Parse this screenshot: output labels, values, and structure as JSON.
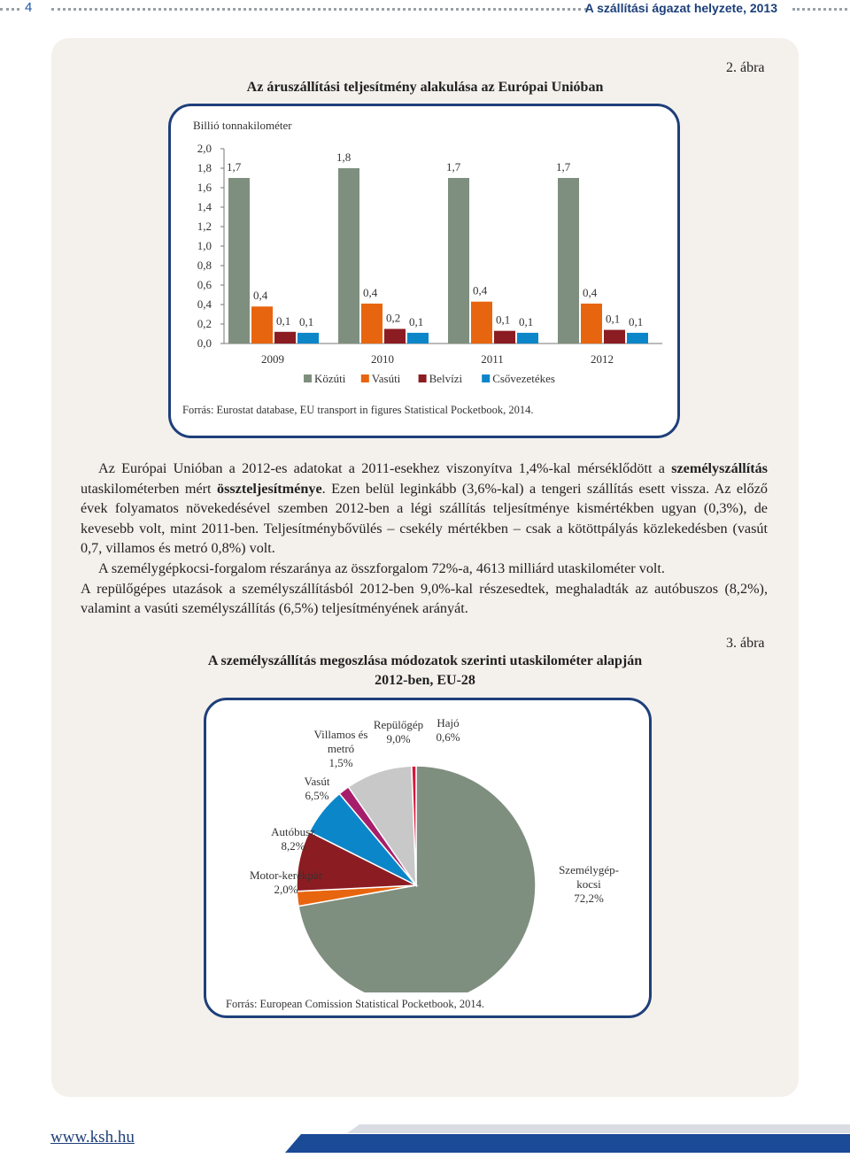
{
  "header": {
    "page_number": "4",
    "running_title": "A szállítási ágazat helyzete, 2013"
  },
  "figure2": {
    "label": "2. ábra",
    "title": "Az áruszállítási teljesítmény alakulása az Európai Unióban",
    "unit": "Billió tonnakilométer",
    "source": "Forrás: Eurostat database, EU transport in figures Statistical Pocketbook, 2014."
  },
  "figure3": {
    "label": "3. ábra",
    "title_line1": "A személyszállítás megoszlása módozatok szerinti utaskilométer alapján",
    "title_line2": "2012-ben, EU-28",
    "source": "Forrás: European Comission Statistical Pocketbook, 2014."
  },
  "paragraph": {
    "p1_a": "Az Európai Unióban a 2012-es adatokat a 2011-esekhez viszonyítva 1,4%-kal mérséklődött a ",
    "p1_b": "személyszállítás",
    "p1_c": " utaskilométerben mért ",
    "p1_d": "összteljesítménye",
    "p1_e": ". Ezen belül leginkább (3,6%-kal) a tengeri szállítás esett vissza. Az előző évek folyamatos növekedésével szemben 2012-ben a légi szállítás teljesítménye kismértékben ugyan (0,3%), de kevesebb volt, mint 2011-ben. Teljesítménybővülés – csekély mértékben – csak a kötöttpályás közlekedésben (vasút 0,7, villamos és metró 0,8%) volt.",
    "p2": "A személygépkocsi-forgalom részaránya az összforgalom 72%-a, 4613 milliárd utaskilométer volt.",
    "p3": "A repülőgépes utazások a személyszállításból 2012-ben 9,0%-kal részesedtek, meghaladták az autóbuszos (8,2%), valamint a vasúti személyszállítás (6,5%) teljesítményének arányát."
  },
  "footer": {
    "url": "www.ksh.hu"
  },
  "chart_data": [
    {
      "type": "bar",
      "title": "Az áruszállítási teljesítmény alakulása az Európai Unióban",
      "ylabel": "Billió tonnakilométer",
      "categories": [
        "2009",
        "2010",
        "2011",
        "2012"
      ],
      "ylim": [
        0,
        2.0
      ],
      "yticks": [
        "0,0",
        "0,2",
        "0,4",
        "0,6",
        "0,8",
        "1,0",
        "1,2",
        "1,4",
        "1,6",
        "1,8",
        "2,0"
      ],
      "grid": false,
      "legend_position": "bottom",
      "series": [
        {
          "name": "Közúti",
          "color": "#7f8f7f",
          "values": [
            1.7,
            1.8,
            1.7,
            1.7
          ],
          "labels": [
            "1,7",
            "1,8",
            "1,7",
            "1,7"
          ]
        },
        {
          "name": "Vasúti",
          "color": "#e8650f",
          "values": [
            0.38,
            0.41,
            0.43,
            0.41
          ],
          "labels": [
            "0,4",
            "0,4",
            "0,4",
            "0,4"
          ]
        },
        {
          "name": "Belvízi",
          "color": "#8b1c22",
          "values": [
            0.12,
            0.15,
            0.13,
            0.14
          ],
          "labels": [
            "0,1",
            "0,2",
            "0,1",
            "0,1"
          ]
        },
        {
          "name": "Csővezetékes",
          "color": "#0b86c9",
          "values": [
            0.11,
            0.11,
            0.11,
            0.11
          ],
          "labels": [
            "0,1",
            "0,1",
            "0,1",
            "0,1"
          ]
        }
      ]
    },
    {
      "type": "pie",
      "title": "A személyszállítás megoszlása módozatok szerinti utaskilométer alapján 2012-ben, EU-28",
      "slices": [
        {
          "name": "Személygépkocsi",
          "label_lines": [
            "Személygép-",
            "kocsi",
            "72,2%"
          ],
          "value": 72.2,
          "color": "#7f8f7f"
        },
        {
          "name": "Motor-kerékpár",
          "label_lines": [
            "Motor-kerékpár",
            "2,0%"
          ],
          "value": 2.0,
          "color": "#e8650f"
        },
        {
          "name": "Autóbusz",
          "label_lines": [
            "Autóbusz",
            "8,2%"
          ],
          "value": 8.2,
          "color": "#8b1c22"
        },
        {
          "name": "Vasút",
          "label_lines": [
            "Vasút",
            "6,5%"
          ],
          "value": 6.5,
          "color": "#0b86c9"
        },
        {
          "name": "Villamos és metró",
          "label_lines": [
            "Villamos és",
            "metró",
            "1,5%"
          ],
          "value": 1.5,
          "color": "#a61e6a"
        },
        {
          "name": "Repülőgép",
          "label_lines": [
            "Repülőgép",
            "9,0%"
          ],
          "value": 9.0,
          "color": "#c8c8c8"
        },
        {
          "name": "Hajó",
          "label_lines": [
            "Hajó",
            "0,6%"
          ],
          "value": 0.6,
          "color": "#d4163c"
        }
      ]
    }
  ]
}
